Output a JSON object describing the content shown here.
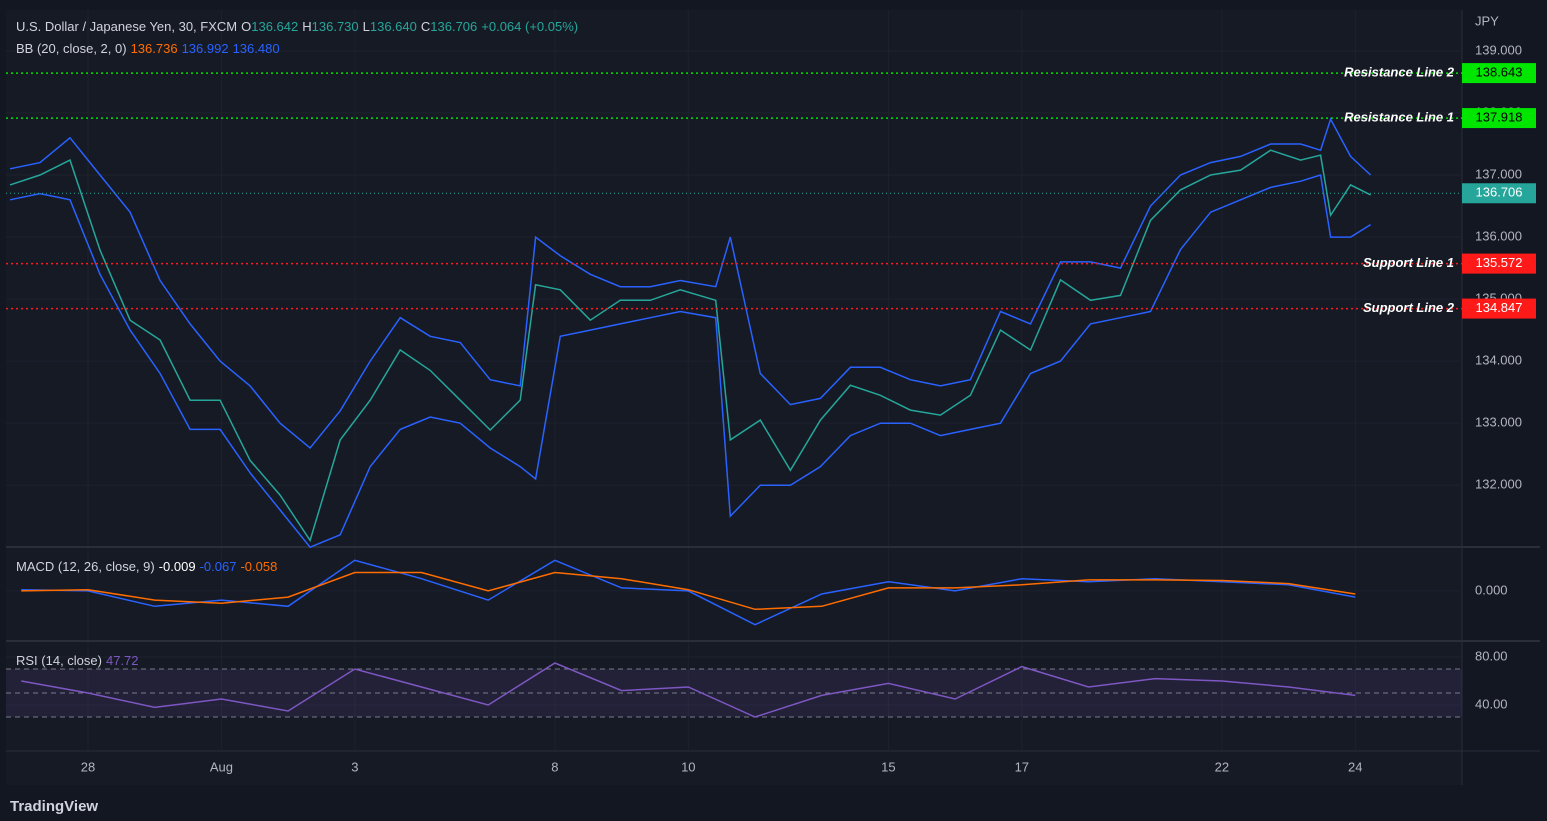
{
  "chart_data": [
    {
      "type": "line",
      "title": "U.S. Dollar / Japanese Yen, 30, FXCM",
      "ohlc": [
        {
          "label": "O",
          "value": "136.642"
        },
        {
          "label": "H",
          "value": "136.730"
        },
        {
          "label": "L",
          "value": "136.640"
        },
        {
          "label": "C",
          "value": "136.706"
        }
      ],
      "change": "+0.064 (+0.05%)",
      "indicator": {
        "name": "BB (20, close, 2, 0)",
        "values": [
          "136.736",
          "136.992",
          "136.480"
        ],
        "colors": [
          "#ff6d00",
          "#2962ff",
          "#2962ff"
        ]
      },
      "currency": "JPY",
      "x": [
        -1.17,
        -0.72,
        -0.27,
        0.18,
        0.63,
        1.08,
        1.53,
        1.98,
        2.43,
        2.88,
        3.33,
        3.78,
        4.23,
        4.68,
        5.13,
        5.58,
        6.03,
        6.48,
        6.71,
        7.08,
        7.53,
        7.98,
        8.43,
        8.88,
        9.41,
        9.63,
        10.08,
        10.53,
        10.98,
        11.43,
        11.88,
        12.33,
        12.78,
        13.23,
        13.68,
        14.13,
        14.58,
        15.03,
        15.48,
        15.93,
        16.38,
        16.83,
        17.28,
        17.73,
        18.18,
        18.48,
        18.63,
        18.93,
        19.23
      ],
      "xlim": [
        -1.23,
        20.6
      ],
      "xticks": [
        {
          "value": 0,
          "label": "28"
        },
        {
          "value": 2,
          "label": "Aug"
        },
        {
          "value": 4,
          "label": "3"
        },
        {
          "value": 7,
          "label": "8"
        },
        {
          "value": 9,
          "label": "10"
        },
        {
          "value": 12,
          "label": "15"
        },
        {
          "value": 14,
          "label": "17"
        },
        {
          "value": 17,
          "label": "22"
        },
        {
          "value": 19,
          "label": "24"
        }
      ],
      "ylim": [
        131.02,
        139.66
      ],
      "yticks": [
        {
          "value": 132,
          "label": "132.000"
        },
        {
          "value": 133,
          "label": "133.000"
        },
        {
          "value": 134,
          "label": "134.000"
        },
        {
          "value": 135,
          "label": "135.000"
        },
        {
          "value": 136,
          "label": "136.000"
        },
        {
          "value": 137,
          "label": "137.000"
        },
        {
          "value": 138,
          "label": "138.000"
        },
        {
          "value": 139,
          "label": "139.000"
        }
      ],
      "series": [
        {
          "color": "#26a69a",
          "values": [
            136.84,
            137.0,
            137.24,
            135.79,
            134.66,
            134.34,
            133.37,
            133.37,
            132.4,
            131.84,
            131.11,
            132.73,
            133.37,
            134.18,
            133.85,
            133.37,
            132.89,
            133.37,
            135.23,
            135.15,
            134.66,
            134.98,
            134.98,
            135.15,
            134.98,
            132.73,
            133.05,
            132.24,
            133.05,
            133.61,
            133.45,
            133.21,
            133.13,
            133.45,
            134.5,
            134.18,
            135.31,
            134.98,
            135.06,
            136.27,
            136.76,
            137.0,
            137.08,
            137.4,
            137.24,
            137.32,
            136.35,
            136.84,
            136.68
          ]
        },
        {
          "color": "#2962ff",
          "values": [
            137.1,
            137.2,
            137.6,
            137.0,
            136.4,
            135.3,
            134.6,
            134.0,
            133.6,
            133.0,
            132.6,
            133.2,
            134.0,
            134.7,
            134.4,
            134.3,
            133.7,
            133.6,
            136.0,
            135.7,
            135.4,
            135.2,
            135.2,
            135.3,
            135.2,
            136.0,
            133.8,
            133.3,
            133.4,
            133.9,
            133.9,
            133.7,
            133.6,
            133.7,
            134.8,
            134.6,
            135.6,
            135.6,
            135.5,
            136.5,
            137.0,
            137.2,
            137.3,
            137.5,
            137.5,
            137.4,
            137.9,
            137.3,
            137.0
          ]
        },
        {
          "color": "#2962ff",
          "values": [
            136.6,
            136.7,
            136.6,
            135.4,
            134.5,
            133.8,
            132.9,
            132.9,
            132.2,
            131.6,
            131.0,
            131.2,
            132.3,
            132.9,
            133.1,
            133.0,
            132.6,
            132.3,
            132.1,
            134.4,
            134.5,
            134.6,
            134.7,
            134.8,
            134.7,
            131.5,
            132.0,
            132.0,
            132.3,
            132.8,
            133.0,
            133.0,
            132.8,
            132.9,
            133.0,
            133.8,
            134.0,
            134.6,
            134.7,
            134.8,
            135.8,
            136.4,
            136.6,
            136.8,
            136.9,
            137.0,
            136.0,
            136.0,
            136.2
          ]
        }
      ],
      "lines": [
        {
          "name": "Resistance Line 2",
          "value": 138.643,
          "color": "#00e600"
        },
        {
          "name": "Resistance Line 1",
          "value": 137.918,
          "color": "#00e600"
        },
        {
          "name": "Support Line 1",
          "value": 135.572,
          "color": "#ff1a1a"
        },
        {
          "name": "Support Line 2",
          "value": 134.847,
          "color": "#ff1a1a"
        }
      ],
      "last": {
        "value": 136.706,
        "color": "#26a69a"
      }
    },
    {
      "type": "line",
      "title": "MACD (12, 26, close, 9)",
      "legend_values": [
        "-0.009",
        "-0.067",
        "-0.058"
      ],
      "x": [
        -1,
        0,
        1,
        2,
        3,
        4,
        5,
        6,
        7,
        8,
        9,
        10,
        11,
        12,
        13,
        14,
        15,
        16,
        17,
        18,
        19
      ],
      "ylim": [
        -0.8,
        0.7
      ],
      "yticks": [
        {
          "value": 0,
          "label": "0.000"
        }
      ],
      "series": [
        {
          "color": "#2962ff",
          "values": [
            0.02,
            0.0,
            -0.25,
            -0.15,
            -0.25,
            0.5,
            0.2,
            -0.15,
            0.5,
            0.05,
            0.0,
            -0.55,
            -0.05,
            0.15,
            0.0,
            0.2,
            0.15,
            0.2,
            0.15,
            0.1,
            -0.1
          ]
        },
        {
          "color": "#ff6d00",
          "values": [
            0.0,
            0.02,
            -0.15,
            -0.2,
            -0.1,
            0.3,
            0.3,
            0.0,
            0.3,
            0.2,
            0.02,
            -0.3,
            -0.25,
            0.05,
            0.05,
            0.1,
            0.18,
            0.18,
            0.17,
            0.12,
            -0.05
          ]
        }
      ]
    },
    {
      "type": "line",
      "title": "RSI (14, close)",
      "legend_values": [
        "47.72"
      ],
      "x": [
        -1,
        0,
        1,
        2,
        3,
        4,
        5,
        6,
        7,
        8,
        9,
        10,
        11,
        12,
        13,
        14,
        15,
        16,
        17,
        18,
        19
      ],
      "ylim": [
        2.5,
        92.5
      ],
      "yticks": [
        {
          "value": 80,
          "label": "80.00"
        },
        {
          "value": 40,
          "label": "40.00"
        }
      ],
      "levels": [
        70,
        50,
        30
      ],
      "series": [
        {
          "color": "#7e57c2",
          "values": [
            60,
            50,
            38,
            45,
            35,
            70,
            55,
            40,
            75,
            52,
            55,
            30,
            48,
            58,
            45,
            72,
            55,
            62,
            60,
            55,
            48
          ]
        }
      ]
    }
  ],
  "footer": "TradingView"
}
